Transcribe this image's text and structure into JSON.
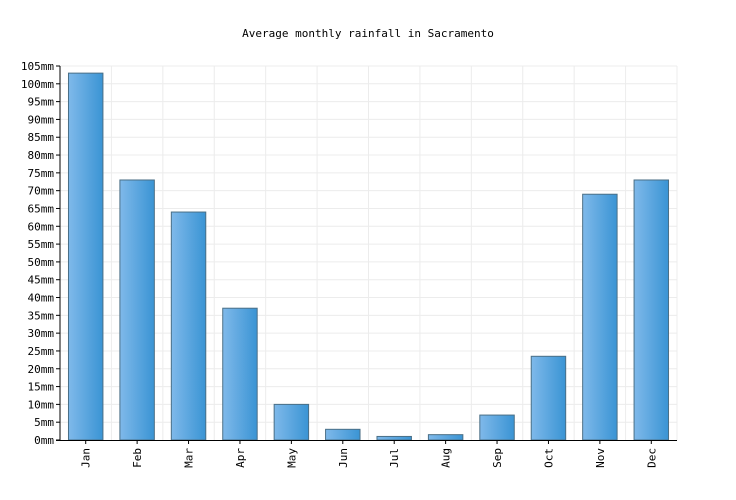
{
  "chart_data": {
    "type": "bar",
    "title": "Average monthly rainfall in Sacramento",
    "xlabel": "",
    "ylabel": "",
    "unit": "mm",
    "categories": [
      "Jan",
      "Feb",
      "Mar",
      "Apr",
      "May",
      "Jun",
      "Jul",
      "Aug",
      "Sep",
      "Oct",
      "Nov",
      "Dec"
    ],
    "values": [
      103,
      73,
      64,
      37,
      10,
      3,
      1,
      1.5,
      7,
      23.5,
      69,
      73
    ],
    "ylim": [
      0,
      105
    ],
    "ytick_step": 5,
    "ytick_labels": [
      "0mm",
      "5mm",
      "10mm",
      "15mm",
      "20mm",
      "25mm",
      "30mm",
      "35mm",
      "40mm",
      "45mm",
      "50mm",
      "55mm",
      "60mm",
      "65mm",
      "70mm",
      "75mm",
      "80mm",
      "85mm",
      "90mm",
      "95mm",
      "100mm",
      "105mm"
    ],
    "grid": true,
    "legend": "none",
    "colors": {
      "bar_light": "#7fb9ea",
      "bar_dark": "#3a94d4",
      "bar_edge": "#4a6f86",
      "grid": "#ececec",
      "axis": "#000000",
      "text": "#000000"
    }
  }
}
